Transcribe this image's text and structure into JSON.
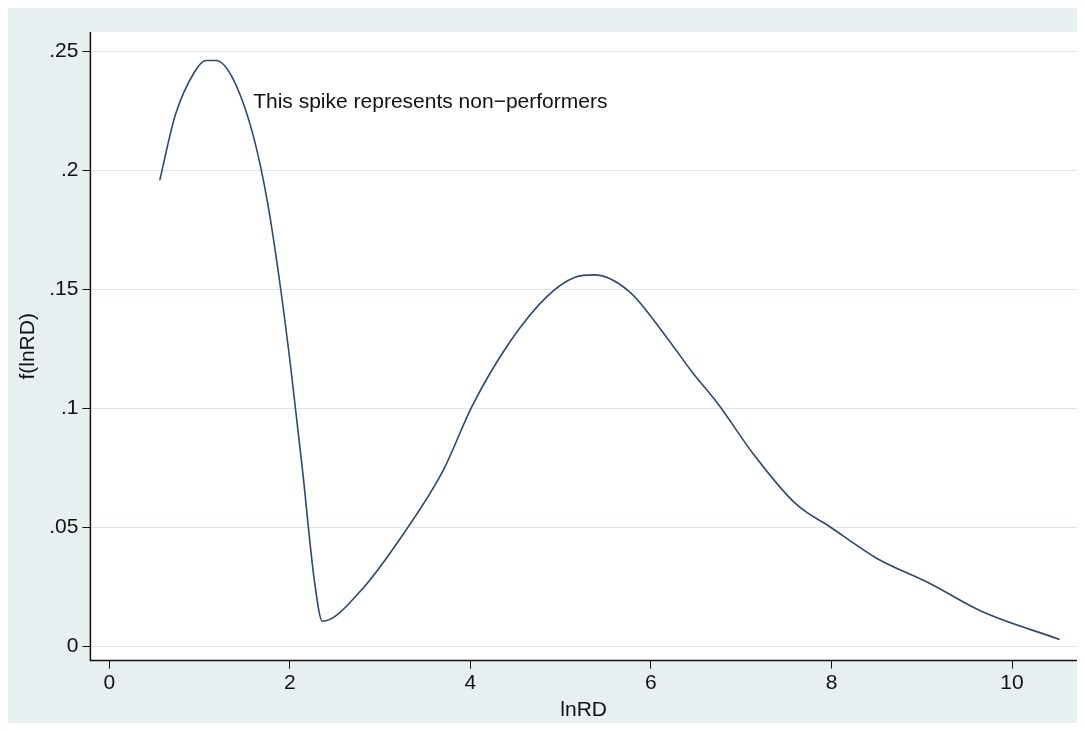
{
  "chart_data": {
    "type": "line",
    "xlabel": "lnRD",
    "ylabel": "f(lnRD)",
    "x": [
      0.56,
      0.73,
      0.94,
      1.07,
      1.18,
      1.36,
      1.59,
      1.75,
      1.88,
      2.01,
      2.14,
      2.27,
      2.36,
      2.77,
      3.29,
      3.7,
      4.02,
      4.44,
      4.85,
      5.16,
      5.37,
      5.76,
      6.15,
      6.46,
      6.74,
      7.13,
      7.6,
      7.99,
      8.5,
      9.09,
      9.68,
      10.52
    ],
    "series": [
      {
        "color": "#2e4a6b",
        "values": [
          0.196,
          0.223,
          0.241,
          0.246,
          0.246,
          0.239,
          0.215,
          0.187,
          0.155,
          0.117,
          0.074,
          0.028,
          0.0105,
          0.0227,
          0.049,
          0.074,
          0.101,
          0.128,
          0.147,
          0.155,
          0.156,
          0.149,
          0.131,
          0.115,
          0.102,
          0.081,
          0.06,
          0.05,
          0.037,
          0.0264,
          0.0144,
          0.003
        ]
      }
    ],
    "xlim": [
      -0.21,
      10.72
    ],
    "xticks": [
      0,
      2,
      4,
      6,
      8,
      10
    ],
    "ylim": [
      -0.006,
      0.258
    ],
    "yticks": [
      {
        "value": 0,
        "label": "0"
      },
      {
        "value": 0.05,
        "label": ".05"
      },
      {
        "value": 0.1,
        "label": ".1"
      },
      {
        "value": 0.15,
        "label": ".15"
      },
      {
        "value": 0.2,
        "label": ".2"
      },
      {
        "value": 0.25,
        "label": ".25"
      }
    ],
    "grid": "y",
    "marker": "none",
    "line_style": "solid",
    "legend": false,
    "annotations": [
      "This spike represents non−performers"
    ]
  }
}
